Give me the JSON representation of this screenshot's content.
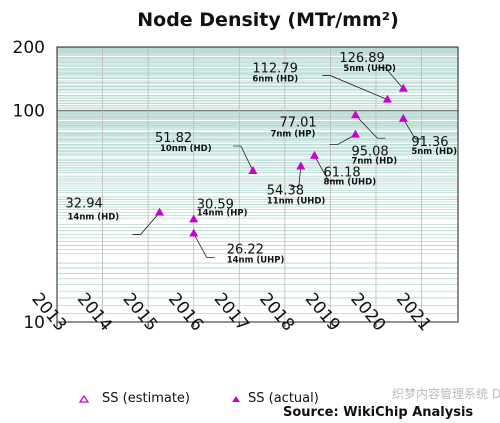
{
  "chart_data": {
    "type": "scatter",
    "title": "Node Density (MTr/mm²)",
    "y_scale": "log",
    "ylim": [
      10,
      200
    ],
    "y_ticks": [
      10,
      100,
      200
    ],
    "xlim": [
      2013,
      2021.8
    ],
    "x_ticks": [
      "2013",
      "2014",
      "2015",
      "2016",
      "2017",
      "2018",
      "2019",
      "2020",
      "2021"
    ],
    "grid": true,
    "marker_color": "#cc00cc",
    "series": [
      {
        "name": "SS (estimate)",
        "marker": "hollow-triangle",
        "points": []
      },
      {
        "name": "SS (actual)",
        "marker": "filled-triangle",
        "points": [
          {
            "x": 2015.25,
            "y": 32.94,
            "value_label": "32.94",
            "node_label": "14nm (HD)"
          },
          {
            "x": 2016.0,
            "y": 30.59,
            "value_label": "30.59",
            "node_label": "14nm (HP)"
          },
          {
            "x": 2016.0,
            "y": 26.22,
            "value_label": "26.22",
            "node_label": "14nm (UHP)"
          },
          {
            "x": 2017.3,
            "y": 51.82,
            "value_label": "51.82",
            "node_label": "10nm (HD)"
          },
          {
            "x": 2018.35,
            "y": 54.38,
            "value_label": "54.38",
            "node_label": "11nm (UHD)"
          },
          {
            "x": 2018.65,
            "y": 61.18,
            "value_label": "61.18",
            "node_label": "8nm (UHD)"
          },
          {
            "x": 2019.55,
            "y": 95.08,
            "value_label": "95.08",
            "node_label": "7nm (HD)"
          },
          {
            "x": 2019.55,
            "y": 77.01,
            "value_label": "77.01",
            "node_label": "7nm (HP)"
          },
          {
            "x": 2020.25,
            "y": 112.79,
            "value_label": "112.79",
            "node_label": "6nm (HD)"
          },
          {
            "x": 2020.6,
            "y": 126.89,
            "value_label": "126.89",
            "node_label": "5nm (UHD)"
          },
          {
            "x": 2020.6,
            "y": 91.36,
            "value_label": "91.36",
            "node_label": "5nm (HD)"
          }
        ]
      }
    ],
    "legend": {
      "placement": "bottom-left"
    }
  },
  "source": "Source: WikiChip Analysis",
  "watermark": "织梦内容管理系统 DEDECMS.COM"
}
